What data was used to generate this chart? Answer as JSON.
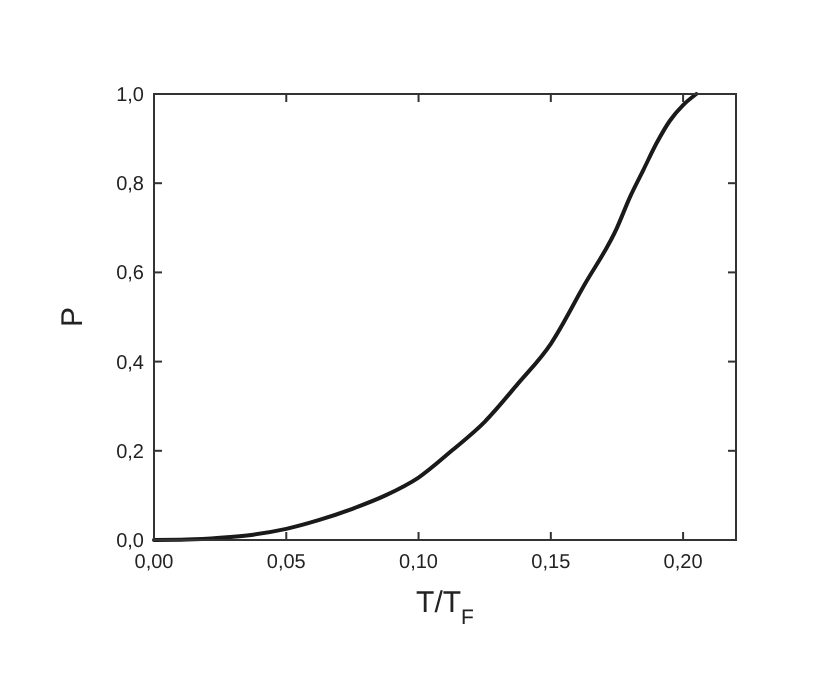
{
  "chart_data": {
    "type": "line",
    "xlabel": "T/T$_{F}$",
    "ylabel": "P",
    "x": [
      0,
      0.0125,
      0.025,
      0.0375,
      0.05,
      0.0625,
      0.075,
      0.0875,
      0.1,
      0.1125,
      0.125,
      0.1375,
      0.15,
      0.1625,
      0.175,
      0.18,
      0.185,
      0.19,
      0.195,
      0.2,
      0.205
    ],
    "series": [
      {
        "color": "#1a1a1a",
        "values": [
          0,
          0.001,
          0.005,
          0.012,
          0.025,
          0.045,
          0.07,
          0.1,
          0.14,
          0.2,
          0.265,
          0.35,
          0.44,
          0.57,
          0.7,
          0.77,
          0.83,
          0.89,
          0.94,
          0.975,
          1.0
        ]
      }
    ],
    "xlim": [
      0,
      0.22
    ],
    "ylim": [
      0,
      1
    ],
    "xticks": [
      {
        "value": 0,
        "label": "0,00"
      },
      {
        "value": 0.05,
        "label": "0,05"
      },
      {
        "value": 0.1,
        "label": "0,10"
      },
      {
        "value": 0.15,
        "label": "0,15"
      },
      {
        "value": 0.2,
        "label": "0,20"
      }
    ],
    "yticks": [
      {
        "value": 0,
        "label": "0,0"
      },
      {
        "value": 0.2,
        "label": "0,2"
      },
      {
        "value": 0.4,
        "label": "0,4"
      },
      {
        "value": 0.6,
        "label": "0,6"
      },
      {
        "value": 0.8,
        "label": "0,8"
      },
      {
        "value": 1,
        "label": "1,0"
      }
    ],
    "marker": "none",
    "line_style": "solid"
  }
}
